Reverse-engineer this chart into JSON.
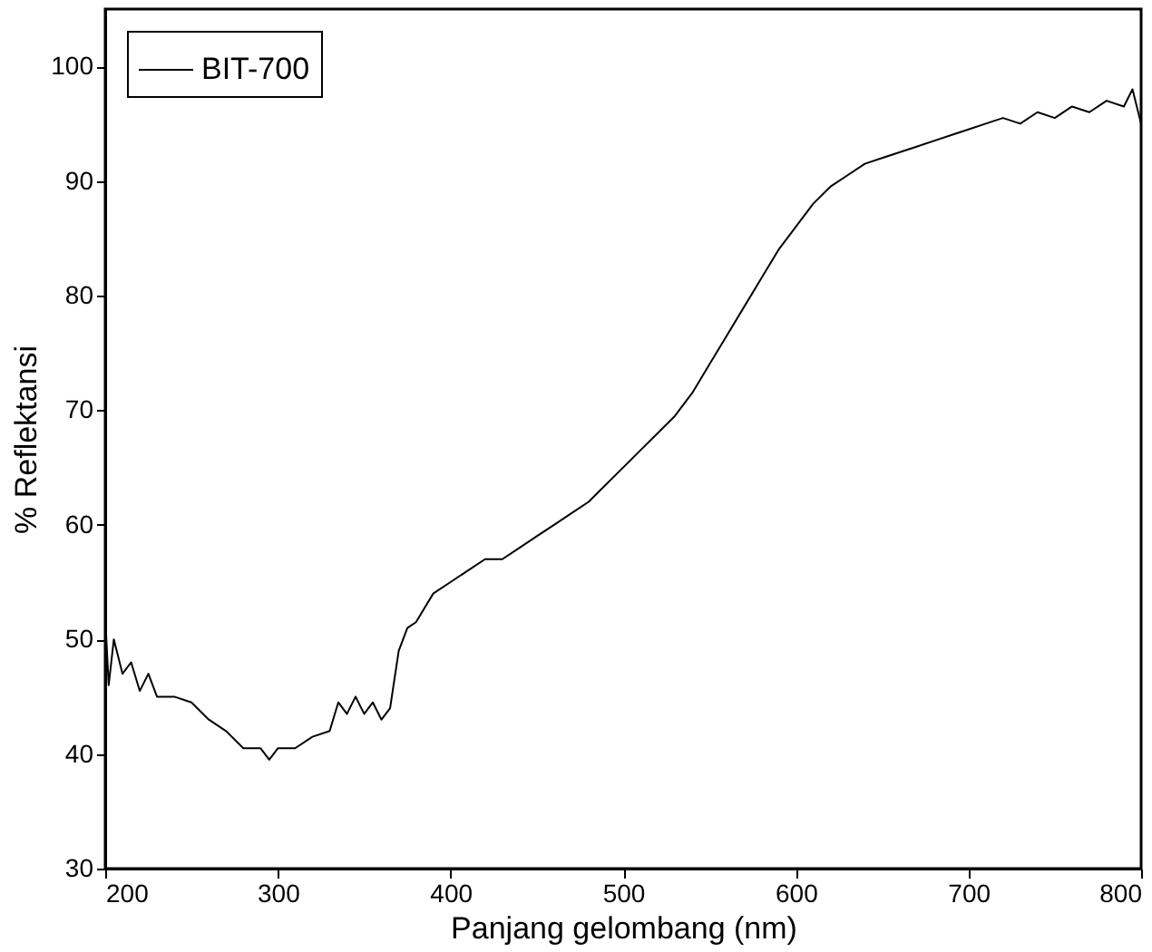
{
  "chart_data": {
    "type": "line",
    "xlabel": "Panjang gelombang (nm)",
    "ylabel": "% Reflektansi",
    "x": [
      200,
      202,
      205,
      210,
      215,
      220,
      225,
      230,
      240,
      250,
      260,
      270,
      280,
      290,
      295,
      300,
      310,
      320,
      330,
      335,
      340,
      345,
      350,
      355,
      360,
      365,
      370,
      375,
      380,
      390,
      400,
      410,
      420,
      430,
      440,
      450,
      460,
      470,
      480,
      490,
      500,
      510,
      520,
      530,
      540,
      550,
      560,
      570,
      580,
      590,
      600,
      610,
      620,
      630,
      640,
      650,
      660,
      670,
      680,
      690,
      700,
      710,
      720,
      730,
      740,
      750,
      760,
      770,
      780,
      790,
      795,
      800
    ],
    "series": [
      {
        "name": "BIT-700",
        "color": "#000000",
        "values": [
          52,
          46,
          50,
          47,
          48,
          45.5,
          47,
          45,
          45,
          44.5,
          43,
          42,
          40.5,
          40.5,
          39.5,
          40.5,
          40.5,
          41.5,
          42,
          44.5,
          43.5,
          45,
          43.5,
          44.5,
          43,
          44,
          49,
          51,
          51.5,
          54,
          55,
          56,
          57,
          57,
          58,
          59,
          60,
          61,
          62,
          63.5,
          65,
          66.5,
          68,
          69.5,
          71.5,
          74,
          76.5,
          79,
          81.5,
          84,
          86,
          88,
          89.5,
          90.5,
          91.5,
          92,
          92.5,
          93,
          93.5,
          94,
          94.5,
          95,
          95.5,
          95,
          96,
          95.5,
          96.5,
          96,
          97,
          96.5,
          98,
          95
        ]
      }
    ],
    "xlim": [
      200,
      800
    ],
    "ylim": [
      30,
      105
    ],
    "xticks": [
      200,
      300,
      400,
      500,
      600,
      700,
      800
    ],
    "yticks": [
      30,
      40,
      50,
      60,
      70,
      80,
      90,
      100
    ],
    "grid": false,
    "legend": "top left",
    "marker": "none",
    "line_style": "solid"
  }
}
